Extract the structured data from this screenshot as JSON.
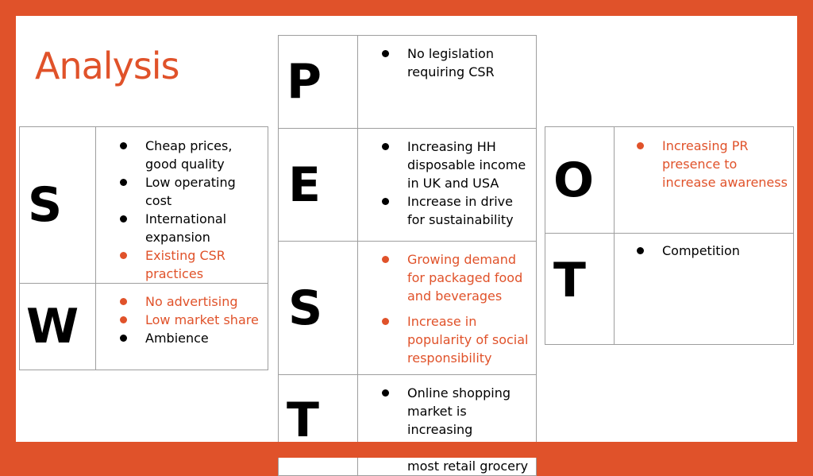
{
  "title": "Analysis",
  "swot": {
    "S": {
      "letter": "S",
      "items": [
        {
          "text": "Cheap prices, good quality",
          "accent": false
        },
        {
          "text": "Low operating cost",
          "accent": false
        },
        {
          "text": "International expansion",
          "accent": false
        },
        {
          "text": "Existing CSR practices",
          "accent": true
        }
      ]
    },
    "W": {
      "letter": "W",
      "items": [
        {
          "text": "No advertising",
          "accent": true
        },
        {
          "text": "Low market share",
          "accent": true
        },
        {
          "text": "Ambience",
          "accent": false
        }
      ]
    },
    "O": {
      "letter": "O",
      "items": [
        {
          "text": "Increasing PR presence to increase awareness",
          "accent": true
        }
      ]
    },
    "T": {
      "letter": "T",
      "items": [
        {
          "text": "Competition",
          "accent": false
        }
      ]
    }
  },
  "pest": {
    "P": {
      "letter": "P",
      "items": [
        {
          "text": "No legislation requiring CSR",
          "accent": false
        }
      ]
    },
    "E": {
      "letter": "E",
      "items": [
        {
          "text": "Increasing HH disposable income in UK and USA",
          "accent": false
        },
        {
          "text": "Increase in drive for sustainability",
          "accent": false
        }
      ]
    },
    "S": {
      "letter": "S",
      "items": [
        {
          "text": "Growing demand for packaged food and beverages",
          "accent": true
        },
        {
          "text": "Increase in popularity of social responsibility",
          "accent": true
        }
      ]
    },
    "T": {
      "letter": "T",
      "items": [
        {
          "text": "Online shopping market is increasing",
          "accent": false
        },
        {
          "text": "Self check out in most retail grocery",
          "accent": false
        }
      ]
    }
  },
  "colors": {
    "accent": "#e0522a",
    "border": "#9e9e9e"
  }
}
